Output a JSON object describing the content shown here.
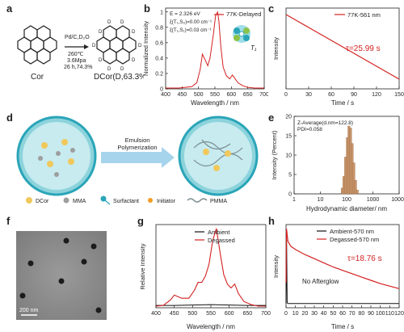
{
  "panel_letters": {
    "a": "a",
    "b": "b",
    "c": "c",
    "d": "d",
    "e": "e",
    "f": "f",
    "g": "g",
    "h": "h"
  },
  "scheme_a": {
    "reactant": "Cor",
    "conditions": [
      "Pd/C,D₂O",
      "260℃",
      "3.6Mpa",
      "26 h,74.3%"
    ],
    "product": "DCor(D,63.3%)",
    "d_label": "D"
  },
  "panel_b_text": {
    "energy": "E = 2.326 eV",
    "soc1": "ξ(T₁,S₀)=0.00 cm⁻¹",
    "soc2": "ξ(T₁,S₁)=0.03 cm⁻¹",
    "state": "T₁"
  },
  "panel_c_text": {
    "tau": "τ=25.99 s"
  },
  "panel_d": {
    "arrow_label_line1": "Emulsion",
    "arrow_label_line2": "Polymerization",
    "legend": [
      "DCor",
      "MMA",
      "Surfactant",
      "Initiator",
      "PMMA"
    ]
  },
  "panel_e_text": {
    "line1": "Z-Average(d.nm=122.8)",
    "line2": "PDI=0.058"
  },
  "panel_f": {
    "scale_bar": "200 nm"
  },
  "panel_h_text": {
    "tau": "τ=18.76 s",
    "note": "No Afterglow"
  },
  "colors": {
    "red": "#d42020",
    "black": "#111111",
    "bar": "#c8956a",
    "accent": "#2aa5b8"
  },
  "chart_data": [
    {
      "id": "b",
      "type": "line",
      "xlabel": "Wavelength / nm",
      "ylabel": "Normalized Intensity",
      "xlim": [
        400,
        700
      ],
      "ylim": [
        0,
        1.05
      ],
      "xticks": [
        400,
        450,
        500,
        550,
        600,
        650,
        700
      ],
      "yticks": [
        0.0,
        0.2,
        0.4,
        0.6,
        0.8,
        1.0
      ],
      "series": [
        {
          "name": "77K-Delayed",
          "color": "#d42020",
          "x": [
            400,
            420,
            440,
            460,
            480,
            495,
            505,
            512,
            520,
            528,
            535,
            545,
            552,
            558,
            562,
            568,
            575,
            585,
            595,
            603,
            610,
            620,
            635,
            650,
            670,
            700
          ],
          "y": [
            0.01,
            0.01,
            0.01,
            0.02,
            0.03,
            0.08,
            0.25,
            0.45,
            0.38,
            0.3,
            0.4,
            0.7,
            0.95,
            1.0,
            0.88,
            0.55,
            0.28,
            0.17,
            0.13,
            0.18,
            0.14,
            0.08,
            0.04,
            0.02,
            0.01,
            0.01
          ]
        }
      ]
    },
    {
      "id": "c",
      "type": "line",
      "xlabel": "Time / s",
      "ylabel": "Intensity",
      "xlim": [
        0,
        150
      ],
      "ylim": [
        0,
        1
      ],
      "xticks": [
        0,
        30,
        60,
        90,
        120,
        150
      ],
      "yticks": [],
      "series": [
        {
          "name": "77K-561 nm",
          "color": "#d42020",
          "x": [
            0,
            15,
            30,
            45,
            60,
            75,
            90,
            105,
            120,
            135,
            150
          ],
          "y": [
            0.92,
            0.84,
            0.76,
            0.68,
            0.6,
            0.52,
            0.44,
            0.36,
            0.28,
            0.2,
            0.12
          ]
        }
      ]
    },
    {
      "id": "e",
      "type": "bar",
      "xlabel": "Hydrodynamic diameter/ nm",
      "ylabel": "Intensity (Percent)",
      "xscale": "log",
      "xlim": [
        1,
        10000
      ],
      "ylim": [
        0,
        20
      ],
      "xticks": [
        1,
        10,
        100,
        1000,
        10000
      ],
      "xticklabels": [
        "1",
        "10",
        "100",
        "1000",
        "10000"
      ],
      "yticks": [
        0,
        5,
        10,
        15,
        20
      ],
      "x": [
        68,
        78,
        91,
        106,
        122,
        142,
        164,
        190,
        220,
        255
      ],
      "values": [
        1.5,
        4.5,
        9.5,
        14.5,
        17.5,
        17,
        13,
        8,
        3.5,
        1
      ]
    },
    {
      "id": "g",
      "type": "line",
      "xlabel": "Wavelength / nm",
      "ylabel": "Relative Intensity",
      "xlim": [
        400,
        700
      ],
      "ylim": [
        0,
        1.05
      ],
      "xticks": [
        400,
        450,
        500,
        550,
        600,
        650,
        700
      ],
      "yticks": [],
      "series": [
        {
          "name": "Ambient",
          "color": "#111111",
          "x": [
            400,
            450,
            500,
            550,
            600,
            650,
            700
          ],
          "y": [
            0.03,
            0.03,
            0.035,
            0.04,
            0.035,
            0.03,
            0.03
          ]
        },
        {
          "name": "Degassed",
          "color": "#d42020",
          "x": [
            400,
            420,
            440,
            450,
            460,
            470,
            490,
            505,
            515,
            525,
            535,
            545,
            555,
            565,
            575,
            585,
            595,
            605,
            615,
            625,
            640,
            660,
            680,
            700
          ],
          "y": [
            0.02,
            0.03,
            0.1,
            0.16,
            0.14,
            0.12,
            0.12,
            0.22,
            0.32,
            0.32,
            0.4,
            0.55,
            0.85,
            1.0,
            0.7,
            0.42,
            0.3,
            0.25,
            0.3,
            0.18,
            0.08,
            0.04,
            0.02,
            0.02
          ]
        }
      ]
    },
    {
      "id": "h",
      "type": "line",
      "xlabel": "Time / s",
      "ylabel": "Intensity",
      "xlim": [
        0,
        120
      ],
      "ylim": [
        0,
        1
      ],
      "xticks": [
        0,
        10,
        20,
        30,
        40,
        50,
        60,
        70,
        80,
        90,
        100,
        110,
        120
      ],
      "yticks": [],
      "series": [
        {
          "name": "Ambient-570 nm",
          "color": "#111111",
          "x": [
            0,
            0.6,
            1.2,
            2,
            5,
            10,
            20,
            30,
            40,
            50,
            60,
            70,
            80,
            90,
            100,
            110,
            120
          ],
          "y": [
            0.05,
            0.82,
            0.06,
            0.05,
            0.05,
            0.05,
            0.05,
            0.05,
            0.05,
            0.05,
            0.05,
            0.05,
            0.05,
            0.05,
            0.05,
            0.05,
            0.05
          ]
        },
        {
          "name": "Degassed-570 nm",
          "color": "#d42020",
          "x": [
            0,
            0.5,
            2,
            5,
            10,
            20,
            30,
            40,
            50,
            60,
            70,
            80,
            90,
            100,
            110,
            120
          ],
          "y": [
            0.3,
            0.95,
            0.8,
            0.74,
            0.7,
            0.64,
            0.59,
            0.54,
            0.49,
            0.45,
            0.41,
            0.37,
            0.33,
            0.29,
            0.26,
            0.23
          ]
        }
      ]
    }
  ]
}
